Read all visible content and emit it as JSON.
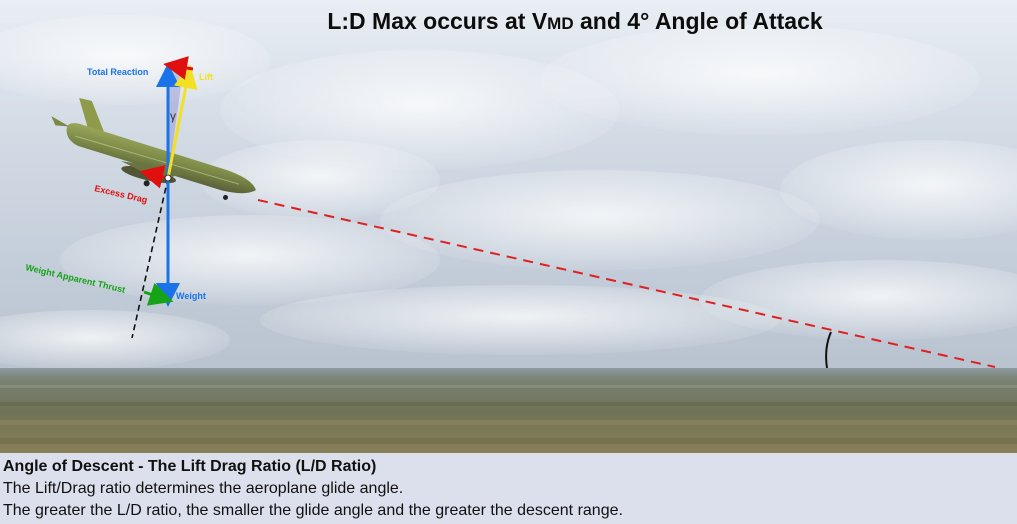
{
  "title": {
    "prefix": "L:D Max occurs at V",
    "subscript": "MD",
    "suffix": " and 4° Angle of Attack"
  },
  "labels": {
    "total_reaction": "Total Reaction",
    "lift": "Lift",
    "gamma": "γ",
    "excess_drag": "Excess Drag",
    "weight_apparent_thrust": "Weight Apparent Thrust",
    "weight": "Weight"
  },
  "caption": {
    "heading": "Angle of Descent - The Lift Drag Ratio (L/D Ratio)",
    "line1": "The Lift/Drag ratio determines the aeroplane glide angle.",
    "line2": "The greater the L/D ratio, the smaller the glide angle and the greater the descent range."
  },
  "colors": {
    "sky": "#cdd6e2",
    "ground": "#7c7b5e",
    "total_reaction": "#1a73e8",
    "lift": "#f2e022",
    "drag": "#e01010",
    "weight_apparent_thrust": "#17a317",
    "glide_path": "#e02020"
  }
}
